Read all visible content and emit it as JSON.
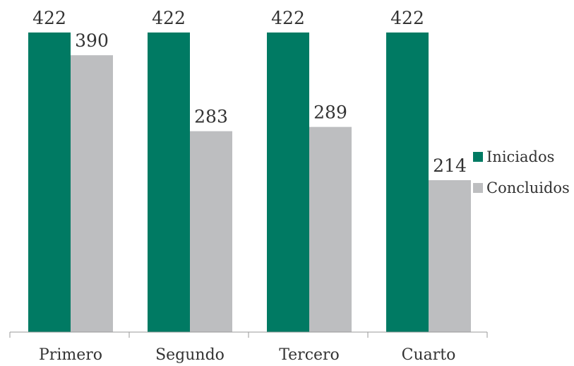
{
  "chart_data": {
    "type": "bar",
    "categories": [
      "Primero",
      "Segundo",
      "Tercero",
      "Cuarto"
    ],
    "series": [
      {
        "name": "Iniciados",
        "values": [
          422,
          422,
          422,
          422
        ],
        "color": "#007A63"
      },
      {
        "name": "Concluidos",
        "values": [
          390,
          283,
          289,
          214
        ],
        "color": "#BDBEC0"
      }
    ],
    "ylim": [
      0,
      422
    ],
    "grid": false,
    "legend_placement": "right"
  }
}
